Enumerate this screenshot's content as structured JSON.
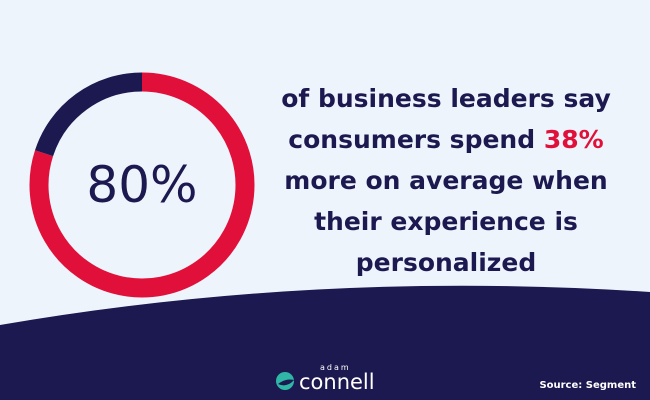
{
  "chart_data": {
    "type": "donut",
    "values": [
      80,
      20
    ],
    "value_labels": [
      "80%",
      null
    ],
    "colors": [
      "#e0103a",
      "#1c1850"
    ]
  },
  "statement": {
    "before": "of business leaders say consumers spend",
    "highlight": "38%",
    "after": "more on average when their experience is personalized"
  },
  "footer": {
    "brand_small": "adam",
    "brand": "connell",
    "source": "Source: Segment"
  }
}
